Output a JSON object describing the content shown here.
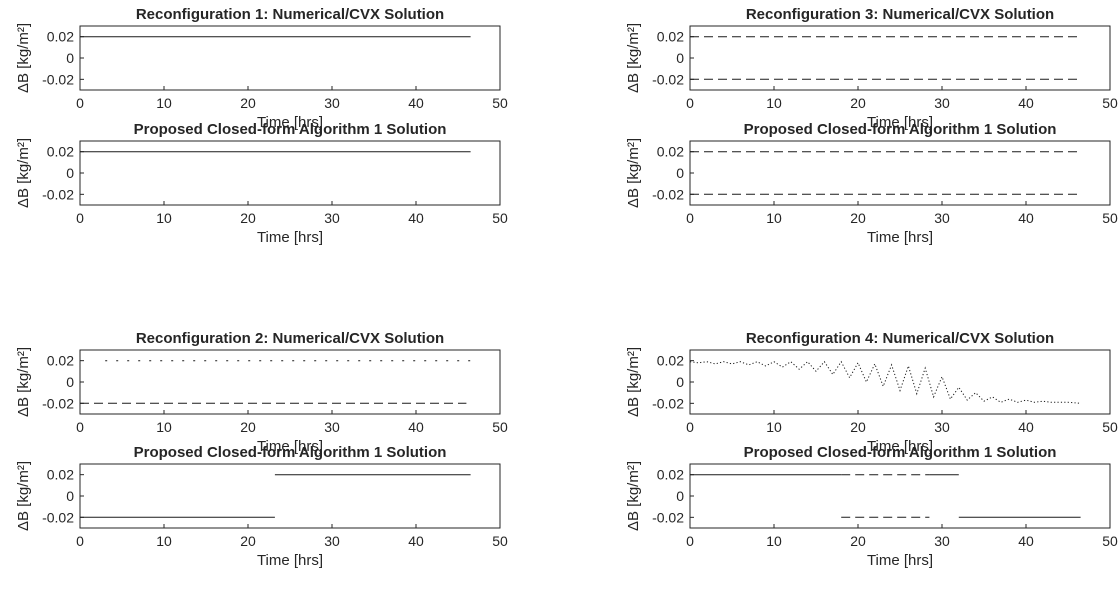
{
  "chart_data": [
    {
      "type": "line",
      "title": "Reconfiguration 1: Numerical/CVX Solution",
      "xlabel": "Time [hrs]",
      "ylabel": "ΔB [kg/m²]",
      "xlim": [
        0,
        50
      ],
      "ylim": [
        -0.03,
        0.03
      ],
      "xticks": [
        "0",
        "10",
        "20",
        "30",
        "40",
        "50"
      ],
      "yticks": [
        "0.02",
        "0",
        "-0.02"
      ],
      "grid": false,
      "series": [
        {
          "style": "solid",
          "segments": [
            {
              "x": [
                0,
                46.5
              ],
              "y": [
                0.02,
                0.02
              ]
            }
          ]
        }
      ]
    },
    {
      "type": "line",
      "title": "Proposed Closed-form Algorithm 1 Solution",
      "xlabel": "Time [hrs]",
      "ylabel": "ΔB [kg/m²]",
      "xlim": [
        0,
        50
      ],
      "ylim": [
        -0.03,
        0.03
      ],
      "xticks": [
        "0",
        "10",
        "20",
        "30",
        "40",
        "50"
      ],
      "yticks": [
        "0.02",
        "0",
        "-0.02"
      ],
      "grid": false,
      "series": [
        {
          "style": "solid",
          "segments": [
            {
              "x": [
                0,
                46.5
              ],
              "y": [
                0.02,
                0.02
              ]
            }
          ]
        }
      ]
    },
    {
      "type": "line",
      "title": "Reconfiguration 2: Numerical/CVX Solution",
      "xlabel": "Time [hrs]",
      "ylabel": "ΔB [kg/m²]",
      "xlim": [
        0,
        50
      ],
      "ylim": [
        -0.03,
        0.03
      ],
      "xticks": [
        "0",
        "10",
        "20",
        "30",
        "40",
        "50"
      ],
      "yticks": [
        "0.02",
        "0",
        "-0.02"
      ],
      "grid": false,
      "series": [
        {
          "style": "sparse-dotted",
          "segments": [
            {
              "x": [
                3,
                46.5
              ],
              "y": [
                0.02,
                0.02
              ]
            }
          ]
        },
        {
          "style": "dashed",
          "segments": [
            {
              "x": [
                0,
                46
              ],
              "y": [
                -0.02,
                -0.02
              ]
            }
          ]
        }
      ]
    },
    {
      "type": "line",
      "title": "Proposed Closed-form Algorithm 1 Solution",
      "xlabel": "Time [hrs]",
      "ylabel": "ΔB [kg/m²]",
      "xlim": [
        0,
        50
      ],
      "ylim": [
        -0.03,
        0.03
      ],
      "xticks": [
        "0",
        "10",
        "20",
        "30",
        "40",
        "50"
      ],
      "yticks": [
        "0.02",
        "0",
        "-0.02"
      ],
      "grid": false,
      "series": [
        {
          "style": "solid",
          "segments": [
            {
              "x": [
                0,
                23.2
              ],
              "y": [
                -0.02,
                -0.02
              ]
            },
            {
              "x": [
                23.2,
                46.5
              ],
              "y": [
                0.02,
                0.02
              ]
            }
          ]
        }
      ]
    },
    {
      "type": "line",
      "title": "Reconfiguration 3: Numerical/CVX Solution",
      "xlabel": "Time [hrs]",
      "ylabel": "ΔB [kg/m²]",
      "xlim": [
        0,
        50
      ],
      "ylim": [
        -0.03,
        0.03
      ],
      "xticks": [
        "0",
        "10",
        "20",
        "30",
        "40",
        "50"
      ],
      "yticks": [
        "0.02",
        "0",
        "-0.02"
      ],
      "grid": false,
      "series": [
        {
          "style": "dashed",
          "segments": [
            {
              "x": [
                0,
                46.5
              ],
              "y": [
                0.02,
                0.02
              ]
            }
          ]
        },
        {
          "style": "dashed",
          "segments": [
            {
              "x": [
                0,
                46.5
              ],
              "y": [
                -0.02,
                -0.02
              ]
            }
          ]
        }
      ]
    },
    {
      "type": "line",
      "title": "Proposed Closed-form Algorithm 1 Solution",
      "xlabel": "Time [hrs]",
      "ylabel": "ΔB [kg/m²]",
      "xlim": [
        0,
        50
      ],
      "ylim": [
        -0.03,
        0.03
      ],
      "xticks": [
        "0",
        "10",
        "20",
        "30",
        "40",
        "50"
      ],
      "yticks": [
        "0.02",
        "0",
        "-0.02"
      ],
      "grid": false,
      "series": [
        {
          "style": "dashed",
          "segments": [
            {
              "x": [
                0,
                46.5
              ],
              "y": [
                0.02,
                0.02
              ]
            }
          ]
        },
        {
          "style": "dashed",
          "segments": [
            {
              "x": [
                0,
                46.5
              ],
              "y": [
                -0.02,
                -0.02
              ]
            }
          ]
        }
      ]
    },
    {
      "type": "line",
      "title": "Reconfiguration 4: Numerical/CVX Solution",
      "xlabel": "Time [hrs]",
      "ylabel": "ΔB [kg/m²]",
      "xlim": [
        0,
        50
      ],
      "ylim": [
        -0.03,
        0.03
      ],
      "xticks": [
        "0",
        "10",
        "20",
        "30",
        "40",
        "50"
      ],
      "yticks": [
        "0.02",
        "0",
        "-0.02"
      ],
      "grid": false,
      "series": [
        {
          "style": "dotted",
          "segments": [
            {
              "x": [
                0,
                1,
                2,
                3,
                4,
                5,
                6,
                7,
                8,
                9,
                10,
                11,
                12,
                13,
                14,
                15,
                16,
                17,
                18,
                19,
                20,
                21,
                22,
                23,
                24,
                25,
                26,
                27,
                28,
                29,
                30,
                31,
                32,
                33,
                34,
                35,
                36,
                37,
                38,
                39,
                40,
                41,
                42,
                43,
                44,
                45,
                46.5
              ],
              "y": [
                0.019,
                0.018,
                0.019,
                0.017,
                0.019,
                0.017,
                0.019,
                0.016,
                0.019,
                0.015,
                0.019,
                0.014,
                0.019,
                0.012,
                0.019,
                0.01,
                0.019,
                0.007,
                0.019,
                0.004,
                0.018,
                0.0,
                0.017,
                -0.004,
                0.016,
                -0.008,
                0.015,
                -0.011,
                0.013,
                -0.014,
                0.005,
                -0.016,
                -0.005,
                -0.017,
                -0.01,
                -0.018,
                -0.014,
                -0.019,
                -0.016,
                -0.019,
                -0.017,
                -0.019,
                -0.018,
                -0.019,
                -0.019,
                -0.019,
                -0.02
              ]
            }
          ]
        }
      ]
    },
    {
      "type": "line",
      "title": "Proposed Closed-form Algorithm 1 Solution",
      "xlabel": "Time [hrs]",
      "ylabel": "ΔB [kg/m²]",
      "xlim": [
        0,
        50
      ],
      "ylim": [
        -0.03,
        0.03
      ],
      "xticks": [
        "0",
        "10",
        "20",
        "30",
        "40",
        "50"
      ],
      "yticks": [
        "0.02",
        "0",
        "-0.02"
      ],
      "grid": false,
      "series": [
        {
          "style": "solid",
          "segments": [
            {
              "x": [
                0,
                18
              ],
              "y": [
                0.02,
                0.02
              ]
            }
          ]
        },
        {
          "style": "dashed",
          "segments": [
            {
              "x": [
                18,
                28.5
              ],
              "y": [
                0.02,
                0.02
              ]
            },
            {
              "x": [
                18,
                28.5
              ],
              "y": [
                -0.02,
                -0.02
              ]
            }
          ]
        },
        {
          "style": "solid",
          "segments": [
            {
              "x": [
                28.5,
                32
              ],
              "y": [
                0.02,
                0.02
              ]
            }
          ]
        },
        {
          "style": "solid",
          "segments": [
            {
              "x": [
                32,
                46.5
              ],
              "y": [
                -0.02,
                -0.02
              ]
            }
          ]
        }
      ]
    }
  ]
}
